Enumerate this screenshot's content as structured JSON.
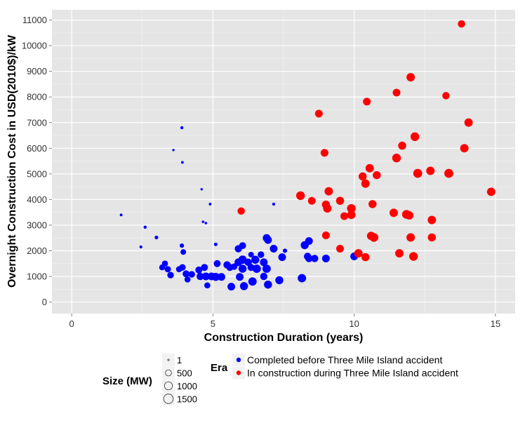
{
  "chart_data": {
    "type": "scatter",
    "xlabel": "Construction Duration (years)",
    "ylabel": "Overnight Construction Cost in USD(2010$)/kW",
    "xlim": [
      -0.7,
      15.7
    ],
    "ylim": [
      -450,
      11400
    ],
    "x_ticks": [
      0,
      5,
      10,
      15
    ],
    "x_tick_labels": [
      "0",
      "5",
      "10",
      "15"
    ],
    "y_ticks": [
      0,
      1000,
      2000,
      3000,
      4000,
      5000,
      6000,
      7000,
      8000,
      9000,
      10000,
      11000
    ],
    "y_tick_labels": [
      "0",
      "1000",
      "2000",
      "3000",
      "4000",
      "5000",
      "6000",
      "7000",
      "8000",
      "9000",
      "10000",
      "11000"
    ],
    "grid": true,
    "background": "#e5e5e5",
    "legend_position": "bottom",
    "size_legend": {
      "title": "Size (MW)",
      "entries": [
        {
          "label": "1",
          "value": 1
        },
        {
          "label": "500",
          "value": 500
        },
        {
          "label": "1000",
          "value": 1000
        },
        {
          "label": "1500",
          "value": 1500
        }
      ]
    },
    "color_legend": {
      "title": "Era",
      "entries": [
        {
          "label": "Completed before Three Mile Island accident",
          "color": "#0000ff"
        },
        {
          "label": "In construction during Three Mile Island accident",
          "color": "#ff0000"
        }
      ]
    },
    "series": [
      {
        "name": "Completed before Three Mile Island accident",
        "color": "#0000ff",
        "points": [
          [
            1.75,
            3400,
            40
          ],
          [
            2.45,
            2150,
            60
          ],
          [
            2.6,
            2920,
            70
          ],
          [
            3.0,
            2520,
            120
          ],
          [
            3.6,
            5930,
            20
          ],
          [
            3.9,
            6800,
            60
          ],
          [
            3.92,
            5450,
            40
          ],
          [
            3.9,
            2200,
            200
          ],
          [
            3.95,
            1950,
            400
          ],
          [
            4.6,
            4400,
            20
          ],
          [
            4.65,
            3130,
            30
          ],
          [
            4.75,
            3080,
            30
          ],
          [
            4.9,
            3820,
            40
          ],
          [
            5.1,
            2250,
            100
          ],
          [
            7.15,
            3820,
            60
          ],
          [
            7.55,
            2000,
            200
          ],
          [
            3.2,
            1350,
            450
          ],
          [
            3.3,
            1500,
            500
          ],
          [
            3.4,
            1280,
            550
          ],
          [
            3.5,
            1050,
            600
          ],
          [
            3.8,
            1280,
            500
          ],
          [
            3.92,
            1350,
            600
          ],
          [
            4.05,
            1100,
            700
          ],
          [
            4.1,
            880,
            500
          ],
          [
            4.25,
            1080,
            600
          ],
          [
            4.5,
            1250,
            700
          ],
          [
            4.55,
            1000,
            800
          ],
          [
            4.7,
            1350,
            700
          ],
          [
            4.75,
            1000,
            900
          ],
          [
            4.8,
            650,
            500
          ],
          [
            4.95,
            1000,
            900
          ],
          [
            5.1,
            980,
            1000
          ],
          [
            5.15,
            1500,
            700
          ],
          [
            5.3,
            980,
            900
          ],
          [
            5.5,
            1450,
            800
          ],
          [
            5.6,
            1350,
            700
          ],
          [
            5.65,
            600,
            900
          ],
          [
            5.75,
            1380,
            600
          ],
          [
            5.9,
            1550,
            900
          ],
          [
            5.9,
            2080,
            800
          ],
          [
            5.95,
            980,
            900
          ],
          [
            6.05,
            2200,
            700
          ],
          [
            6.05,
            1650,
            1100
          ],
          [
            6.05,
            1300,
            1000
          ],
          [
            6.1,
            620,
            1000
          ],
          [
            6.25,
            1550,
            800
          ],
          [
            6.35,
            1850,
            400
          ],
          [
            6.35,
            1350,
            700
          ],
          [
            6.4,
            800,
            1100
          ],
          [
            6.5,
            1650,
            1000
          ],
          [
            6.55,
            1300,
            1100
          ],
          [
            6.7,
            1850,
            600
          ],
          [
            6.8,
            1550,
            900
          ],
          [
            6.8,
            1000,
            800
          ],
          [
            6.9,
            1300,
            1100
          ],
          [
            6.9,
            2500,
            900
          ],
          [
            6.95,
            2420,
            900
          ],
          [
            6.95,
            680,
            1000
          ],
          [
            7.15,
            2080,
            900
          ],
          [
            7.35,
            850,
            1000
          ],
          [
            7.45,
            1750,
            900
          ],
          [
            8.15,
            930,
            1100
          ],
          [
            8.25,
            2220,
            1000
          ],
          [
            8.4,
            2380,
            900
          ],
          [
            8.4,
            1700,
            800
          ],
          [
            8.6,
            1700,
            800
          ],
          [
            8.35,
            1780,
            800
          ],
          [
            9.0,
            1700,
            900
          ],
          [
            10.0,
            1780,
            900
          ]
        ]
      },
      {
        "name": "In construction during Three Mile Island accident",
        "color": "#ff0000",
        "points": [
          [
            6.0,
            3550,
            800
          ],
          [
            8.1,
            4150,
            1200
          ],
          [
            8.5,
            3950,
            900
          ],
          [
            8.75,
            7350,
            900
          ],
          [
            8.95,
            5820,
            900
          ],
          [
            9.0,
            2600,
            900
          ],
          [
            9.0,
            3800,
            1000
          ],
          [
            9.05,
            3650,
            1100
          ],
          [
            9.1,
            4320,
            1100
          ],
          [
            9.5,
            3950,
            1000
          ],
          [
            9.5,
            2080,
            900
          ],
          [
            9.65,
            3350,
            900
          ],
          [
            9.9,
            3400,
            1100
          ],
          [
            9.9,
            3650,
            1200
          ],
          [
            10.15,
            1900,
            1100
          ],
          [
            10.3,
            4900,
            1000
          ],
          [
            10.4,
            4620,
            1100
          ],
          [
            10.4,
            1750,
            1000
          ],
          [
            10.45,
            7820,
            900
          ],
          [
            10.55,
            5220,
            1100
          ],
          [
            10.6,
            2580,
            1100
          ],
          [
            10.65,
            3820,
            1000
          ],
          [
            10.7,
            2520,
            1200
          ],
          [
            10.8,
            4950,
            1000
          ],
          [
            11.4,
            3480,
            1100
          ],
          [
            11.5,
            5620,
            1200
          ],
          [
            11.5,
            8170,
            900
          ],
          [
            11.6,
            1900,
            1100
          ],
          [
            11.7,
            6100,
            1000
          ],
          [
            11.85,
            3420,
            1200
          ],
          [
            11.95,
            3380,
            1100
          ],
          [
            12.0,
            8770,
            1100
          ],
          [
            12.0,
            2520,
            1100
          ],
          [
            12.1,
            1780,
            1200
          ],
          [
            12.15,
            6450,
            1200
          ],
          [
            12.25,
            5020,
            1300
          ],
          [
            12.7,
            5120,
            1100
          ],
          [
            12.75,
            2520,
            1000
          ],
          [
            12.75,
            3200,
            1100
          ],
          [
            13.25,
            8050,
            800
          ],
          [
            13.35,
            5020,
            1300
          ],
          [
            13.8,
            10850,
            800
          ],
          [
            13.9,
            6000,
            1100
          ],
          [
            14.05,
            7000,
            1100
          ],
          [
            14.85,
            4300,
            1100
          ]
        ]
      }
    ]
  }
}
